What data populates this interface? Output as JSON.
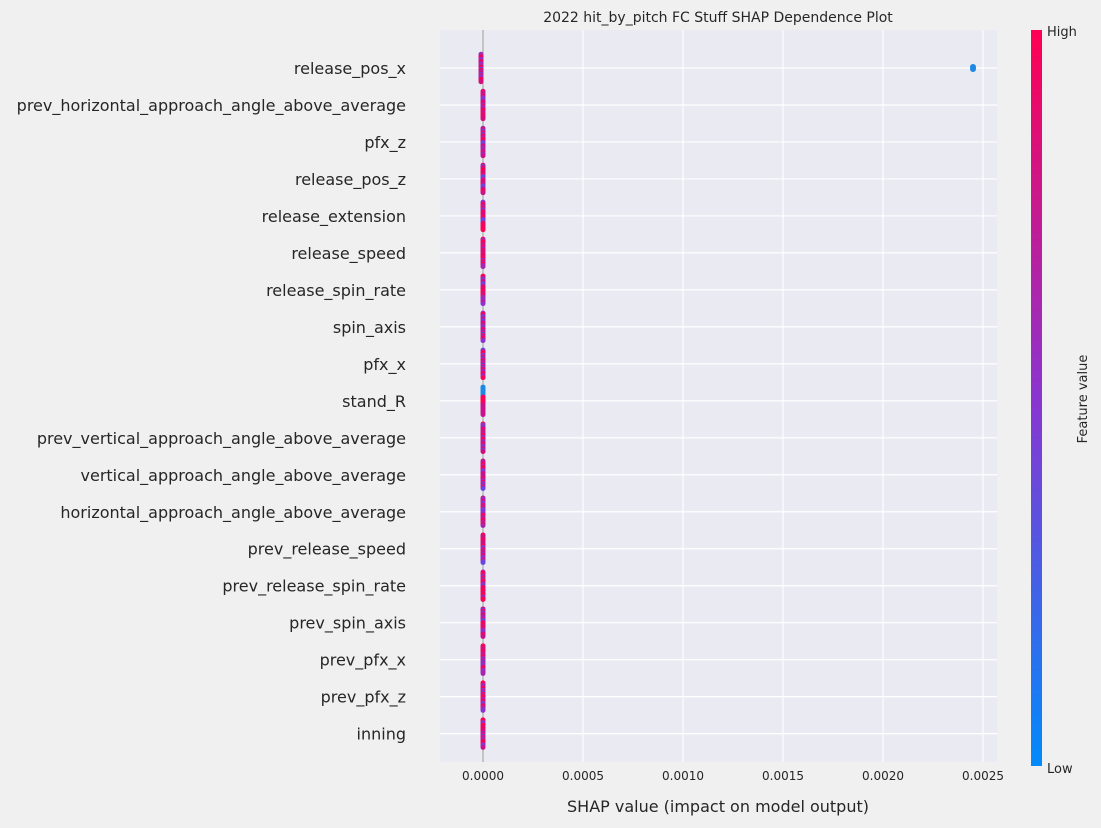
{
  "chart_data": {
    "type": "scatter",
    "subtype": "shap-beeswarm",
    "title": "2022 hit_by_pitch FC Stuff SHAP Dependence Plot",
    "xlabel": "SHAP value (impact on model output)",
    "ylabel": "",
    "xlim": [
      -0.00022,
      0.00026
    ],
    "x_ticks": [
      {
        "value": 0.0,
        "label": "0.0000"
      },
      {
        "value": 0.0005,
        "label": "0.0005"
      },
      {
        "value": 0.001,
        "label": "0.0010"
      },
      {
        "value": 0.0015,
        "label": "0.0015"
      },
      {
        "value": 0.002,
        "label": "0.0020"
      },
      {
        "value": 0.0025,
        "label": "0.0025"
      }
    ],
    "grid": true,
    "colorbar": {
      "label": "Feature value",
      "high_label": "High",
      "low_label": "Low",
      "high_color": "#ff0052",
      "mid_color": "#8a35d0",
      "low_color": "#008bfb"
    },
    "features": [
      {
        "name": "release_pos_x",
        "shap_range": [
          -1e-05,
          -1e-05
        ],
        "dominant": "mixed",
        "outlier": {
          "x": 0.00245,
          "color": "#1e88e5"
        }
      },
      {
        "name": "prev_horizontal_approach_angle_above_average",
        "shap_range": [
          0.0,
          0.0
        ],
        "dominant": "mixed"
      },
      {
        "name": "pfx_z",
        "shap_range": [
          0.0,
          0.0
        ],
        "dominant": "mixed"
      },
      {
        "name": "release_pos_z",
        "shap_range": [
          0.0,
          0.0
        ],
        "dominant": "mixed"
      },
      {
        "name": "release_extension",
        "shap_range": [
          0.0,
          0.0
        ],
        "dominant": "mixed"
      },
      {
        "name": "release_speed",
        "shap_range": [
          0.0,
          0.0
        ],
        "dominant": "mixed"
      },
      {
        "name": "release_spin_rate",
        "shap_range": [
          0.0,
          0.0
        ],
        "dominant": "mixed"
      },
      {
        "name": "spin_axis",
        "shap_range": [
          0.0,
          0.0
        ],
        "dominant": "mixed"
      },
      {
        "name": "pfx_x",
        "shap_range": [
          0.0,
          0.0
        ],
        "dominant": "mixed"
      },
      {
        "name": "stand_R",
        "shap_range": [
          0.0,
          0.0
        ],
        "dominant": "binary"
      },
      {
        "name": "prev_vertical_approach_angle_above_average",
        "shap_range": [
          0.0,
          0.0
        ],
        "dominant": "mixed"
      },
      {
        "name": "vertical_approach_angle_above_average",
        "shap_range": [
          0.0,
          0.0
        ],
        "dominant": "mixed"
      },
      {
        "name": "horizontal_approach_angle_above_average",
        "shap_range": [
          0.0,
          0.0
        ],
        "dominant": "mixed"
      },
      {
        "name": "prev_release_speed",
        "shap_range": [
          0.0,
          0.0
        ],
        "dominant": "mixed"
      },
      {
        "name": "prev_release_spin_rate",
        "shap_range": [
          0.0,
          0.0
        ],
        "dominant": "mixed"
      },
      {
        "name": "prev_spin_axis",
        "shap_range": [
          0.0,
          0.0
        ],
        "dominant": "mixed"
      },
      {
        "name": "prev_pfx_x",
        "shap_range": [
          0.0,
          0.0
        ],
        "dominant": "mixed"
      },
      {
        "name": "prev_pfx_z",
        "shap_range": [
          0.0,
          0.0
        ],
        "dominant": "mixed"
      },
      {
        "name": "inning",
        "shap_range": [
          0.0,
          0.0
        ],
        "dominant": "mixed"
      }
    ]
  }
}
